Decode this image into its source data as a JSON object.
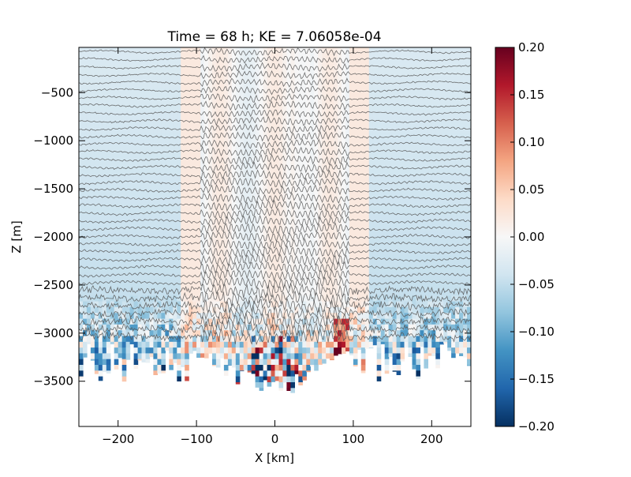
{
  "chart_data": {
    "type": "heatmap",
    "title": "Time = 68 h; KE = 7.06058e-04",
    "xlabel": "X [km]",
    "ylabel": "Z [m]",
    "xlim": [
      -250,
      250
    ],
    "ylim": [
      -3970,
      -30
    ],
    "x_ticks": [
      -200,
      -100,
      0,
      100,
      200
    ],
    "x_tick_labels": [
      "−200",
      "−100",
      "0",
      "100",
      "200"
    ],
    "y_ticks": [
      -500,
      -1000,
      -1500,
      -2000,
      -2500,
      -3000,
      -3500
    ],
    "y_tick_labels": [
      "−500",
      "−1000",
      "−1500",
      "−2000",
      "−2500",
      "−3000",
      "−3500"
    ],
    "colorbar": {
      "colormap": "RdBu_r",
      "range": [
        -0.2,
        0.2
      ],
      "ticks": [
        0.2,
        0.15,
        0.1,
        0.05,
        0.0,
        -0.05,
        -0.1,
        -0.15,
        -0.2
      ],
      "tick_labels": [
        "0.20",
        "0.15",
        "0.10",
        "0.05",
        "0.00",
        "−0.05",
        "−0.10",
        "−0.15",
        "−0.20"
      ]
    },
    "overlay": "isopycnal contour lines (grey)",
    "contour_color": "#555555",
    "grid": false
  }
}
